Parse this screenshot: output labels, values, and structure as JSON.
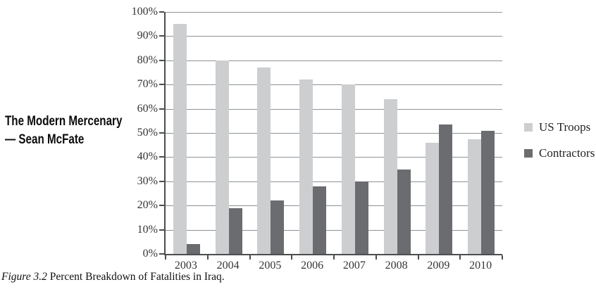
{
  "book_title": {
    "line1": "The Modern Mercenary",
    "line2": "— Sean McFate"
  },
  "caption": {
    "figure_label": "Figure 3.2",
    "text": " Percent Breakdown of Fatalities in Iraq."
  },
  "legend": {
    "position": "right",
    "items": [
      {
        "label": "US Troops",
        "color": "#cdced0"
      },
      {
        "label": "Contractors",
        "color": "#6b6c6f"
      }
    ]
  },
  "chart_data": {
    "type": "bar",
    "title": "",
    "xlabel": "",
    "ylabel": "",
    "categories": [
      "2003",
      "2004",
      "2005",
      "2006",
      "2007",
      "2008",
      "2009",
      "2010"
    ],
    "series": [
      {
        "name": "US Troops",
        "color": "#cdced0",
        "values": [
          95,
          80,
          77,
          72,
          70,
          64,
          46,
          47.5
        ]
      },
      {
        "name": "Contractors",
        "color": "#6b6c6f",
        "values": [
          4,
          19,
          22,
          28,
          30,
          35,
          53.5,
          51
        ]
      }
    ],
    "ylim": [
      0,
      100
    ],
    "y_tick_labels": [
      "0%",
      "10%",
      "20%",
      "30%",
      "40%",
      "50%",
      "60%",
      "70%",
      "80%",
      "90%",
      "100%"
    ],
    "grid": true,
    "legend_position": "right"
  },
  "colors": {
    "axis": "#4c4d4f",
    "gridline": "#8f9194",
    "label_text": "#353537",
    "background": "#ffffff"
  }
}
